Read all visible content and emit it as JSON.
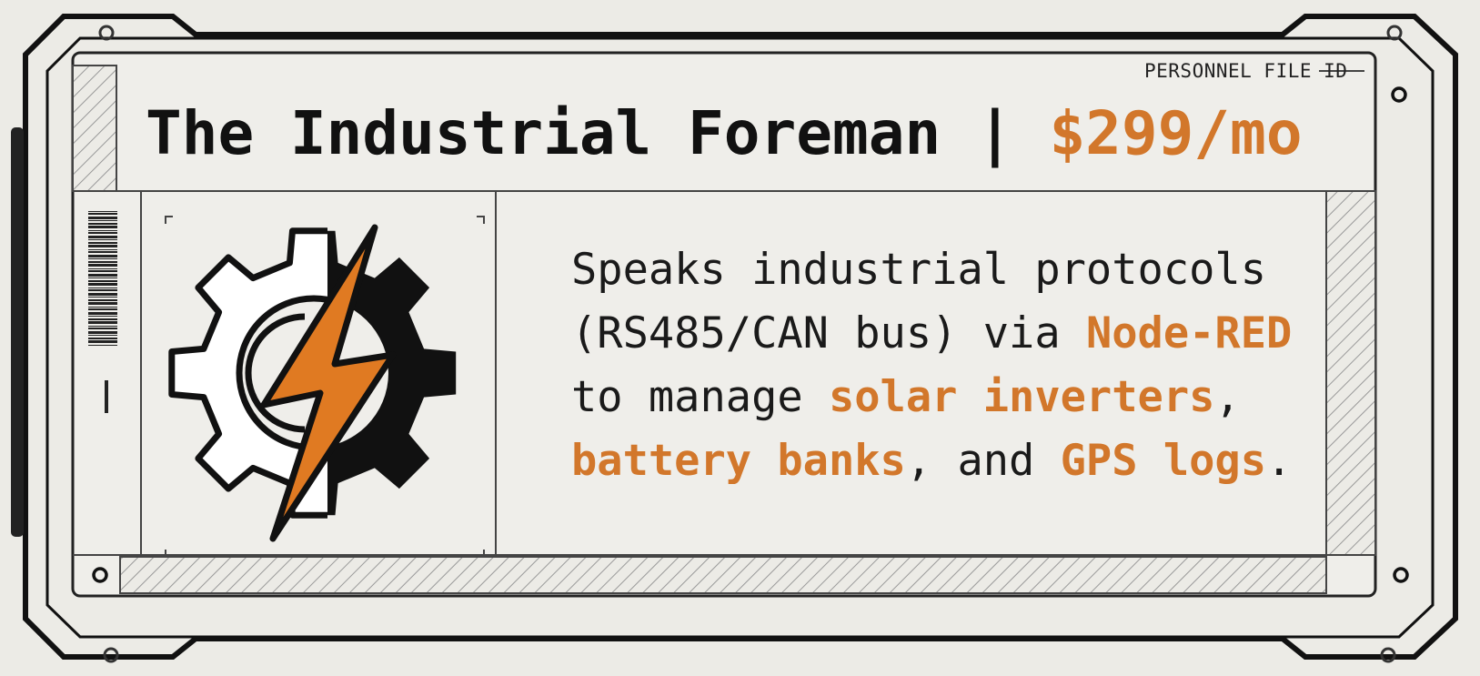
{
  "label": "PERSONNEL FILE ID",
  "header": {
    "title": "The Industrial Foreman",
    "separator": "|",
    "price": "$299/mo"
  },
  "description": [
    {
      "text": "Speaks industrial protocols (RS485/CAN bus) via ",
      "highlight": false
    },
    {
      "text": "Node-RED",
      "highlight": true
    },
    {
      "text": " to manage ",
      "highlight": false
    },
    {
      "text": "solar inverters",
      "highlight": true
    },
    {
      "text": ", ",
      "highlight": false
    },
    {
      "text": "battery banks",
      "highlight": true
    },
    {
      "text": ", and ",
      "highlight": false
    },
    {
      "text": "GPS logs",
      "highlight": true
    },
    {
      "text": ".",
      "highlight": false
    }
  ]
}
